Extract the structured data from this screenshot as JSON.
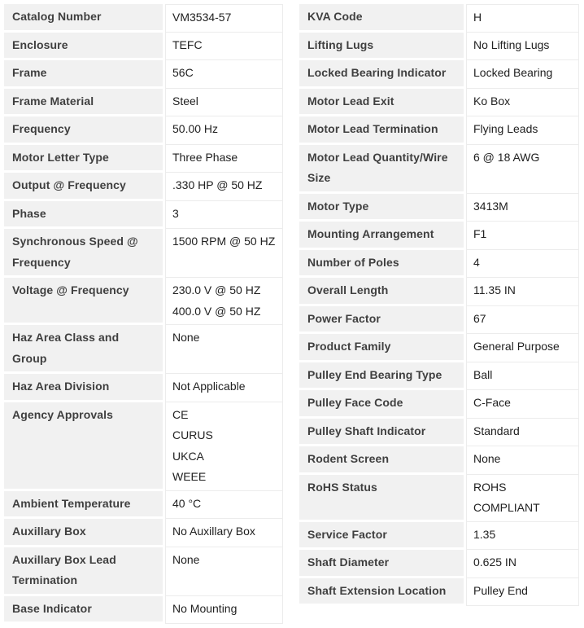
{
  "colors": {
    "label_cell_background": "#f1f1f1",
    "value_cell_border": "#ececec",
    "label_text": "#3f3f3f",
    "value_text": "#212121"
  },
  "tables": {
    "left": {
      "rows": [
        {
          "label": "Catalog Number",
          "values": [
            "VM3534-57"
          ]
        },
        {
          "label": "Enclosure",
          "values": [
            "TEFC"
          ]
        },
        {
          "label": "Frame",
          "values": [
            "56C"
          ]
        },
        {
          "label": "Frame Material",
          "values": [
            "Steel"
          ]
        },
        {
          "label": "Frequency",
          "values": [
            "50.00 Hz"
          ]
        },
        {
          "label": "Motor Letter Type",
          "values": [
            "Three Phase"
          ]
        },
        {
          "label": "Output @ Frequency",
          "values": [
            ".330 HP @ 50 HZ"
          ]
        },
        {
          "label": "Phase",
          "values": [
            "3"
          ]
        },
        {
          "label": "Synchronous Speed @ Frequency",
          "values": [
            "1500 RPM @ 50 HZ"
          ]
        },
        {
          "label": "Voltage @ Frequency",
          "values": [
            "230.0 V @ 50 HZ",
            "400.0 V @ 50 HZ"
          ]
        },
        {
          "label": "Haz Area Class and Group",
          "values": [
            "None"
          ]
        },
        {
          "label": "Haz Area Division",
          "values": [
            "Not Applicable"
          ]
        },
        {
          "label": "Agency Approvals",
          "values": [
            "CE",
            "CURUS",
            "UKCA",
            "WEEE"
          ]
        },
        {
          "label": "Ambient Temperature",
          "values": [
            "40 °C"
          ]
        },
        {
          "label": "Auxillary Box",
          "values": [
            "No Auxillary Box"
          ]
        },
        {
          "label": "Auxillary Box Lead Termination",
          "values": [
            "None"
          ]
        },
        {
          "label": "Base Indicator",
          "values": [
            "No Mounting"
          ]
        }
      ]
    },
    "right": {
      "rows": [
        {
          "label": "KVA Code",
          "values": [
            "H"
          ]
        },
        {
          "label": "Lifting Lugs",
          "values": [
            "No Lifting Lugs"
          ]
        },
        {
          "label": "Locked Bearing Indicator",
          "values": [
            "Locked Bearing"
          ]
        },
        {
          "label": "Motor Lead Exit",
          "values": [
            "Ko Box"
          ]
        },
        {
          "label": "Motor Lead Termination",
          "values": [
            "Flying Leads"
          ]
        },
        {
          "label": "Motor Lead Quantity/Wire Size",
          "values": [
            "6 @ 18 AWG"
          ]
        },
        {
          "label": "Motor Type",
          "values": [
            "3413M"
          ]
        },
        {
          "label": "Mounting Arrangement",
          "values": [
            "F1"
          ]
        },
        {
          "label": "Number of Poles",
          "values": [
            "4"
          ]
        },
        {
          "label": "Overall Length",
          "values": [
            "11.35 IN"
          ]
        },
        {
          "label": "Power Factor",
          "values": [
            "67"
          ]
        },
        {
          "label": "Product Family",
          "values": [
            "General Purpose"
          ]
        },
        {
          "label": "Pulley End Bearing Type",
          "values": [
            "Ball"
          ]
        },
        {
          "label": "Pulley Face Code",
          "values": [
            "C-Face"
          ]
        },
        {
          "label": "Pulley Shaft Indicator",
          "values": [
            "Standard"
          ]
        },
        {
          "label": "Rodent Screen",
          "values": [
            "None"
          ]
        },
        {
          "label": "RoHS Status",
          "values": [
            "ROHS COMPLIANT"
          ]
        },
        {
          "label": "Service Factor",
          "values": [
            "1.35"
          ]
        },
        {
          "label": "Shaft Diameter",
          "values": [
            "0.625 IN"
          ]
        },
        {
          "label": "Shaft Extension Location",
          "values": [
            "Pulley End"
          ]
        }
      ]
    }
  }
}
